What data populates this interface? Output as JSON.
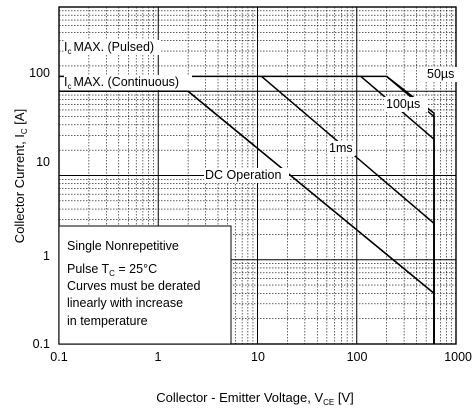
{
  "chart_data": {
    "type": "line",
    "scale": {
      "x": "log",
      "y": "log"
    },
    "xlim": [
      0.1,
      1000
    ],
    "ylim": [
      0.1,
      1000
    ],
    "grid": true,
    "x_ticks": [
      "0.1",
      "1",
      "10",
      "100",
      "1000"
    ],
    "y_ticks": [
      "0.1",
      "1",
      "10",
      "100"
    ],
    "xlabel": {
      "text": "Collector - Emitter Voltage, V",
      "sub": "CE",
      "unit": " [V]"
    },
    "ylabel": {
      "text": "Collector Current, I",
      "sub": "C",
      "unit": " [A]"
    },
    "series": [
      {
        "name": "MAX. (Pulsed)",
        "prefix": "I",
        "sub": "c",
        "x": [
          0.1,
          200,
          600,
          600
        ],
        "y": [
          150,
          150,
          50,
          0.1
        ]
      },
      {
        "name": "MAX. (Continuous)",
        "prefix": "I",
        "sub": "c",
        "x": [
          0.1,
          2,
          600,
          600
        ],
        "y": [
          100,
          100,
          0.4,
          0.1
        ]
      },
      {
        "name": "50µs",
        "x": [
          200,
          600,
          600
        ],
        "y": [
          150,
          55,
          0.1
        ]
      },
      {
        "name": "100µs",
        "x": [
          110,
          600,
          600
        ],
        "y": [
          150,
          27,
          0.1
        ]
      },
      {
        "name": "1ms",
        "x": [
          11,
          600,
          600
        ],
        "y": [
          150,
          2.7,
          0.1
        ]
      },
      {
        "name": "DC Operation",
        "x": [
          2,
          600,
          600
        ],
        "y": [
          100,
          0.4,
          0.1
        ]
      }
    ],
    "annotation_lines": [
      "Single Nonrepetitive",
      {
        "text": "Pulse T",
        "sub": "C",
        "rest": " = 25°C"
      },
      "Curves must be derated",
      "linearly with increase",
      "in temperature"
    ]
  }
}
